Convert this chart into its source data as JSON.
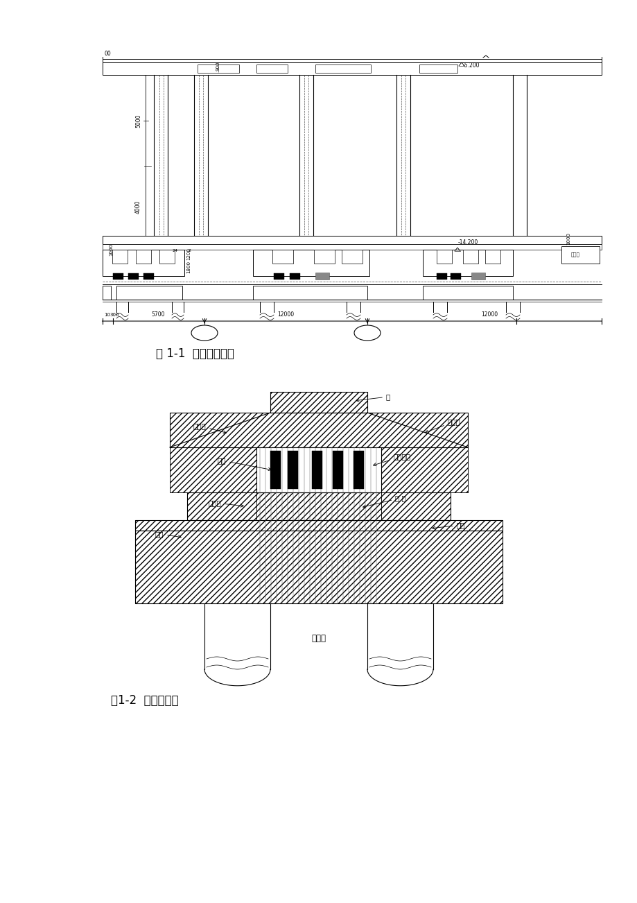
{
  "fig1_caption": "图 1-1  工程应用部位",
  "fig2_caption": "图1-2  设计示意图",
  "background_color": "#ffffff",
  "line_color": "#000000",
  "labels_fig2": {
    "shang_zhuang": "上支墩",
    "zhu": "柱",
    "liang_ban": "梁、板",
    "tao_tong": "套筒",
    "ge_zhen": "隔震支座",
    "xia_zhuang": "下支墩",
    "mao_jin": "锚 筋",
    "cheng_tai": "承台",
    "di_ban": "底板",
    "wa_kong_zhu": "挖孔桩"
  }
}
